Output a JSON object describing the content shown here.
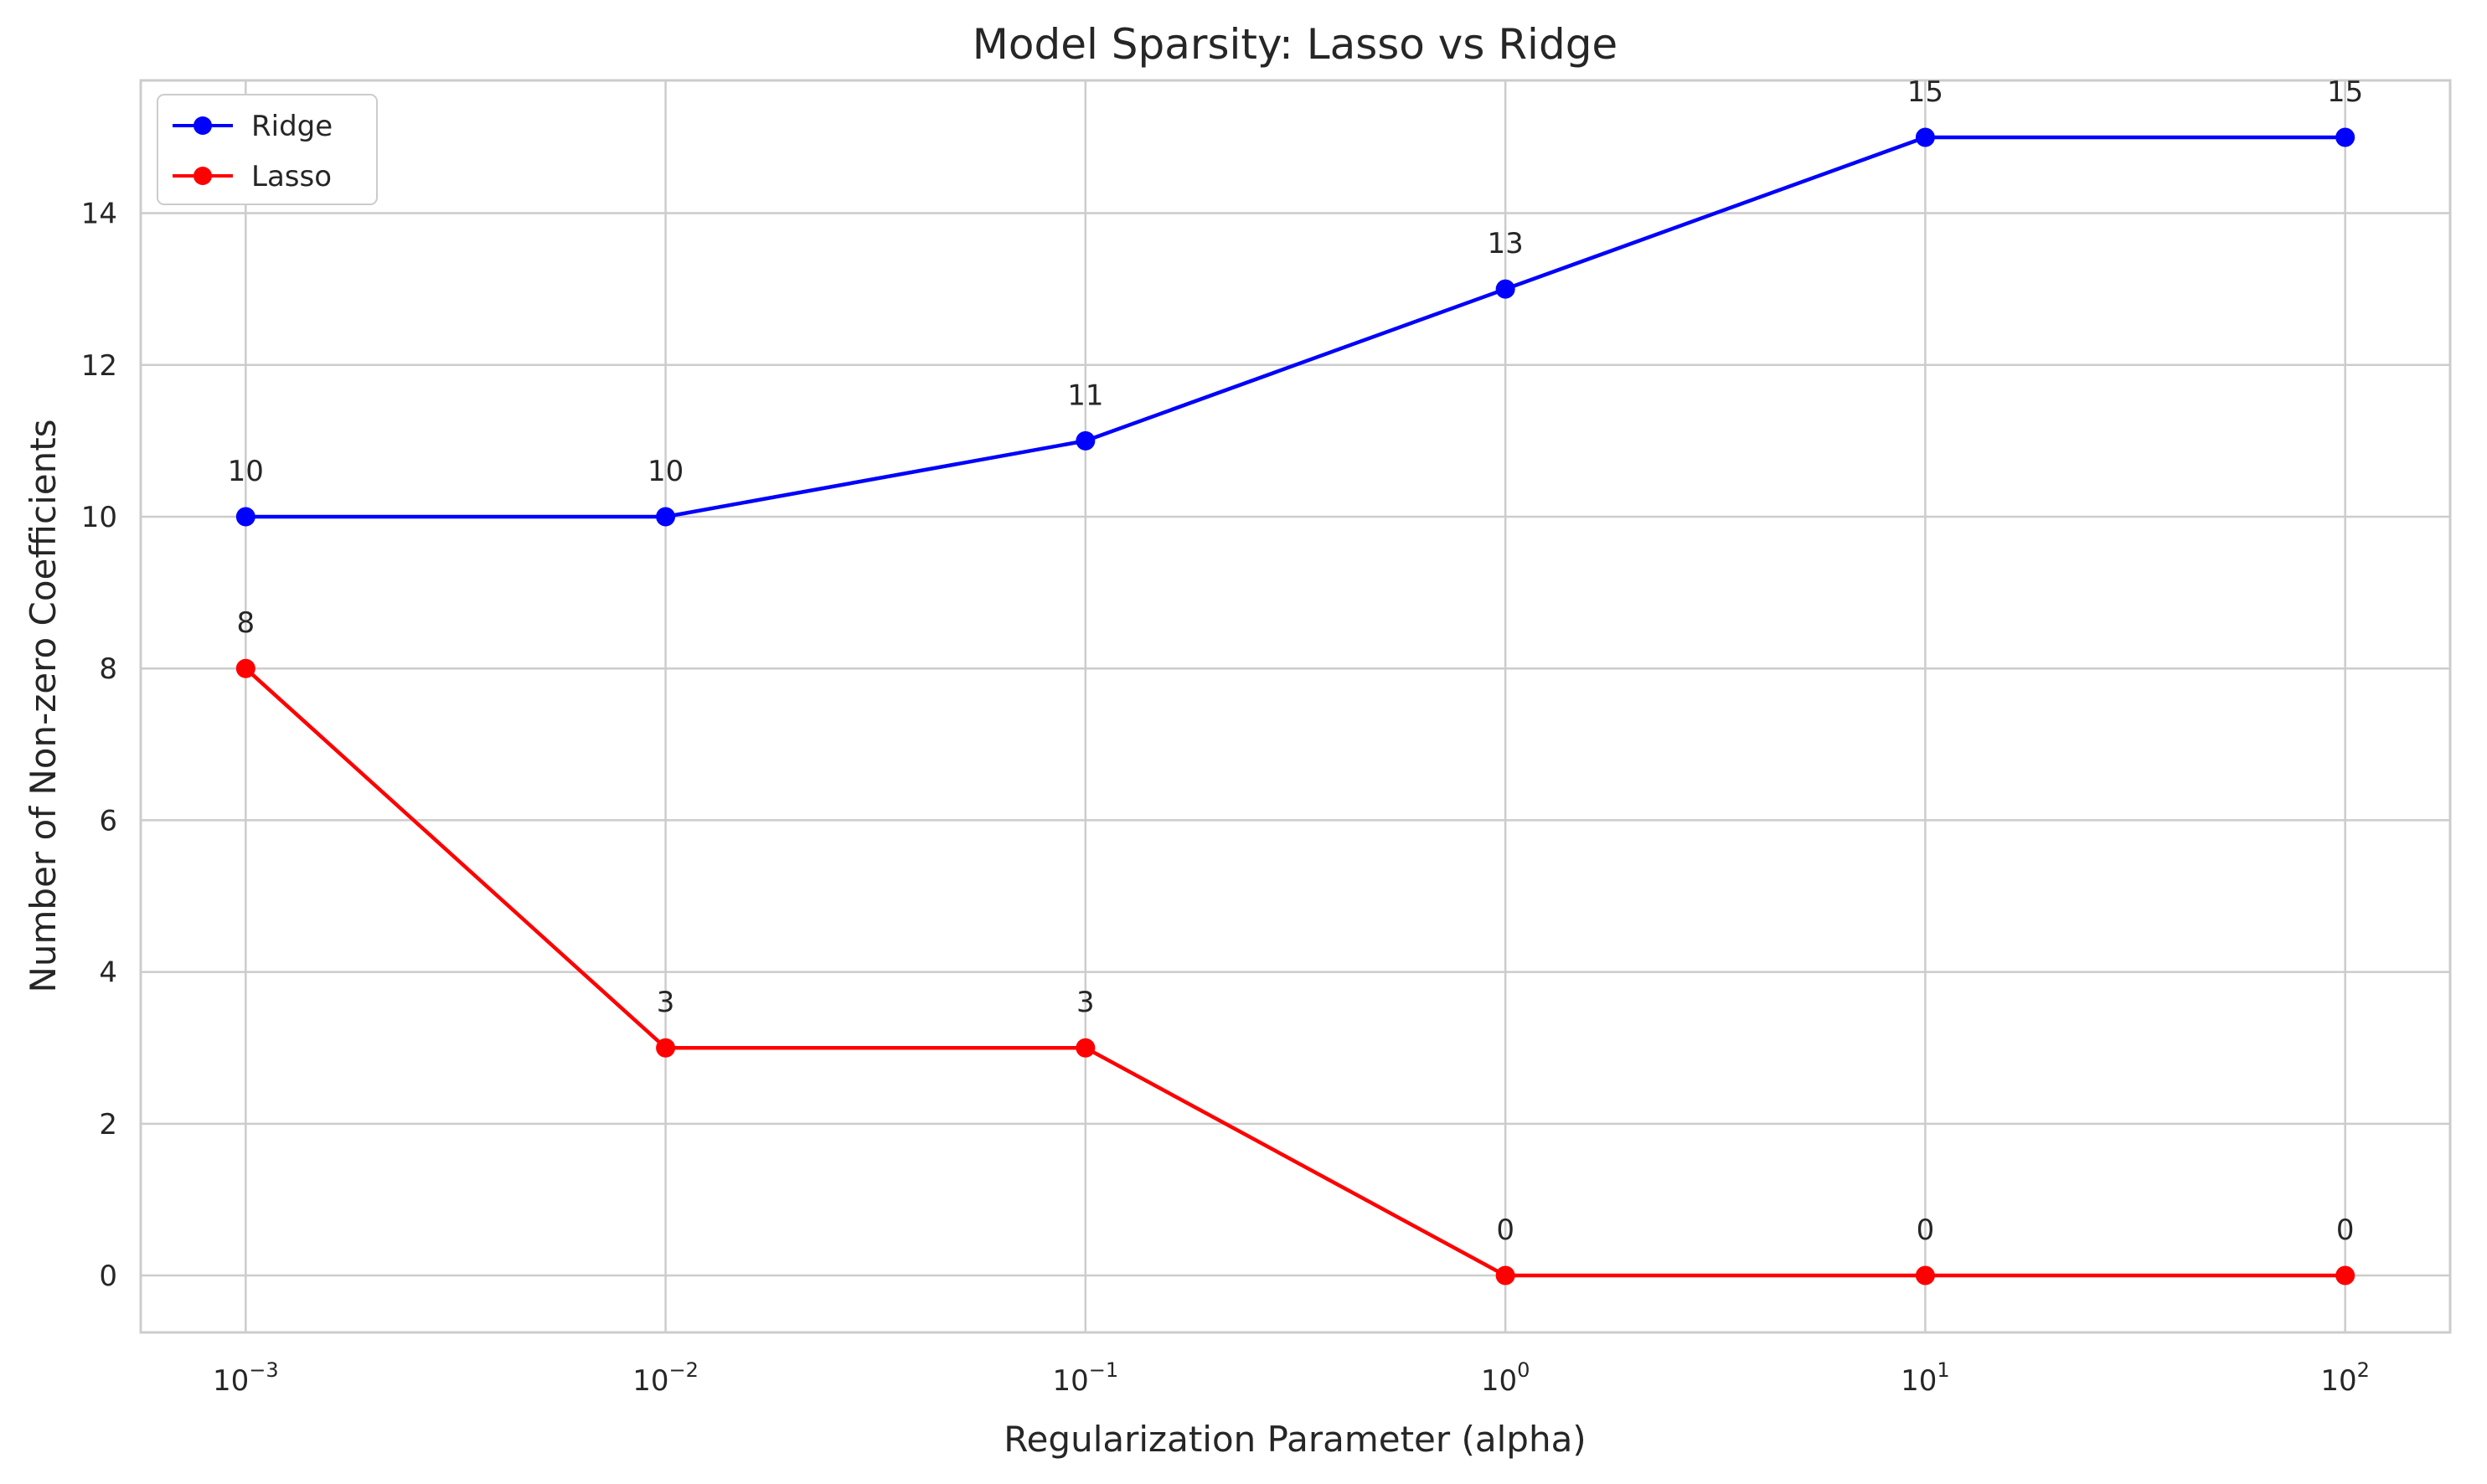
{
  "chart_data": {
    "type": "line",
    "title": "Model Sparsity: Lasso vs Ridge",
    "xlabel": "Regularization Parameter (alpha)",
    "ylabel": "Number of Non-zero Coefficients",
    "xscale": "log",
    "x": [
      0.001,
      0.01,
      0.1,
      1,
      10,
      100
    ],
    "x_ticks": [
      {
        "value": 0.001,
        "base": "10",
        "exp": "−3"
      },
      {
        "value": 0.01,
        "base": "10",
        "exp": "−2"
      },
      {
        "value": 0.1,
        "base": "10",
        "exp": "−1"
      },
      {
        "value": 1,
        "base": "10",
        "exp": "0"
      },
      {
        "value": 10,
        "base": "10",
        "exp": "1"
      },
      {
        "value": 100,
        "base": "10",
        "exp": "2"
      }
    ],
    "y_ticks": [
      0,
      2,
      4,
      6,
      8,
      10,
      12,
      14
    ],
    "ylim": [
      -0.75,
      15.75
    ],
    "xlim_log10": [
      -3.25,
      2.25
    ],
    "grid": true,
    "legend_position": "top-left",
    "series": [
      {
        "name": "Ridge",
        "color": "#0000ff",
        "values": [
          10,
          10,
          11,
          13,
          15,
          15
        ]
      },
      {
        "name": "Lasso",
        "color": "#ff0000",
        "values": [
          8,
          3,
          3,
          0,
          0,
          0
        ]
      }
    ]
  }
}
